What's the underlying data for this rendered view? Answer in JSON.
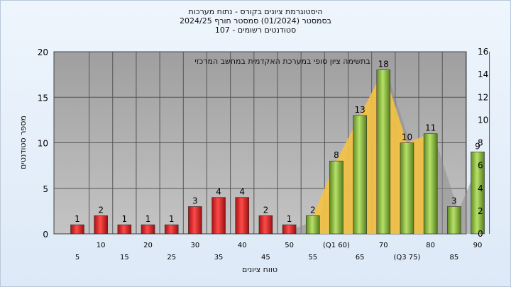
{
  "chart_data": {
    "type": "bar",
    "title_lines": [
      "היסטוגרמת ציונים בקורס - נתוח מערכות",
      "בסמסטר  (01/2024)  סמסטר חורף  2024/25",
      "107 - סטודנטים רשומים"
    ],
    "subtitle": "בתשימה  ציון סופי במערכת האקדמית במחשב המרכזי",
    "xlabel": "טווח ציונים",
    "ylabel": "מספר סטודנטים",
    "ylim": [
      0,
      20
    ],
    "y2lim": [
      0,
      16
    ],
    "yticks": [
      "0",
      "5",
      "10",
      "15",
      "20"
    ],
    "y2ticks": [
      "0",
      "2",
      "4",
      "6",
      "8",
      "10",
      "12",
      "14",
      "16"
    ],
    "categories": [
      5,
      10,
      15,
      20,
      25,
      30,
      35,
      40,
      45,
      50,
      55,
      60,
      65,
      70,
      75,
      80,
      85,
      90
    ],
    "xtick_labels": [
      "5",
      "10",
      "15",
      "20",
      "25",
      "30",
      "35",
      "40",
      "45",
      "50",
      "55",
      "(Q1 60)",
      "65",
      "70",
      "(Q3 75)",
      "80",
      "85",
      "90"
    ],
    "values": [
      1,
      2,
      1,
      1,
      1,
      3,
      4,
      4,
      2,
      1,
      2,
      8,
      13,
      18,
      10,
      11,
      3,
      9
    ],
    "fail_color": "#d42b2b",
    "pass_color": "#8cbf3f",
    "quartile_area_color": "#f5c242",
    "grid": true
  }
}
